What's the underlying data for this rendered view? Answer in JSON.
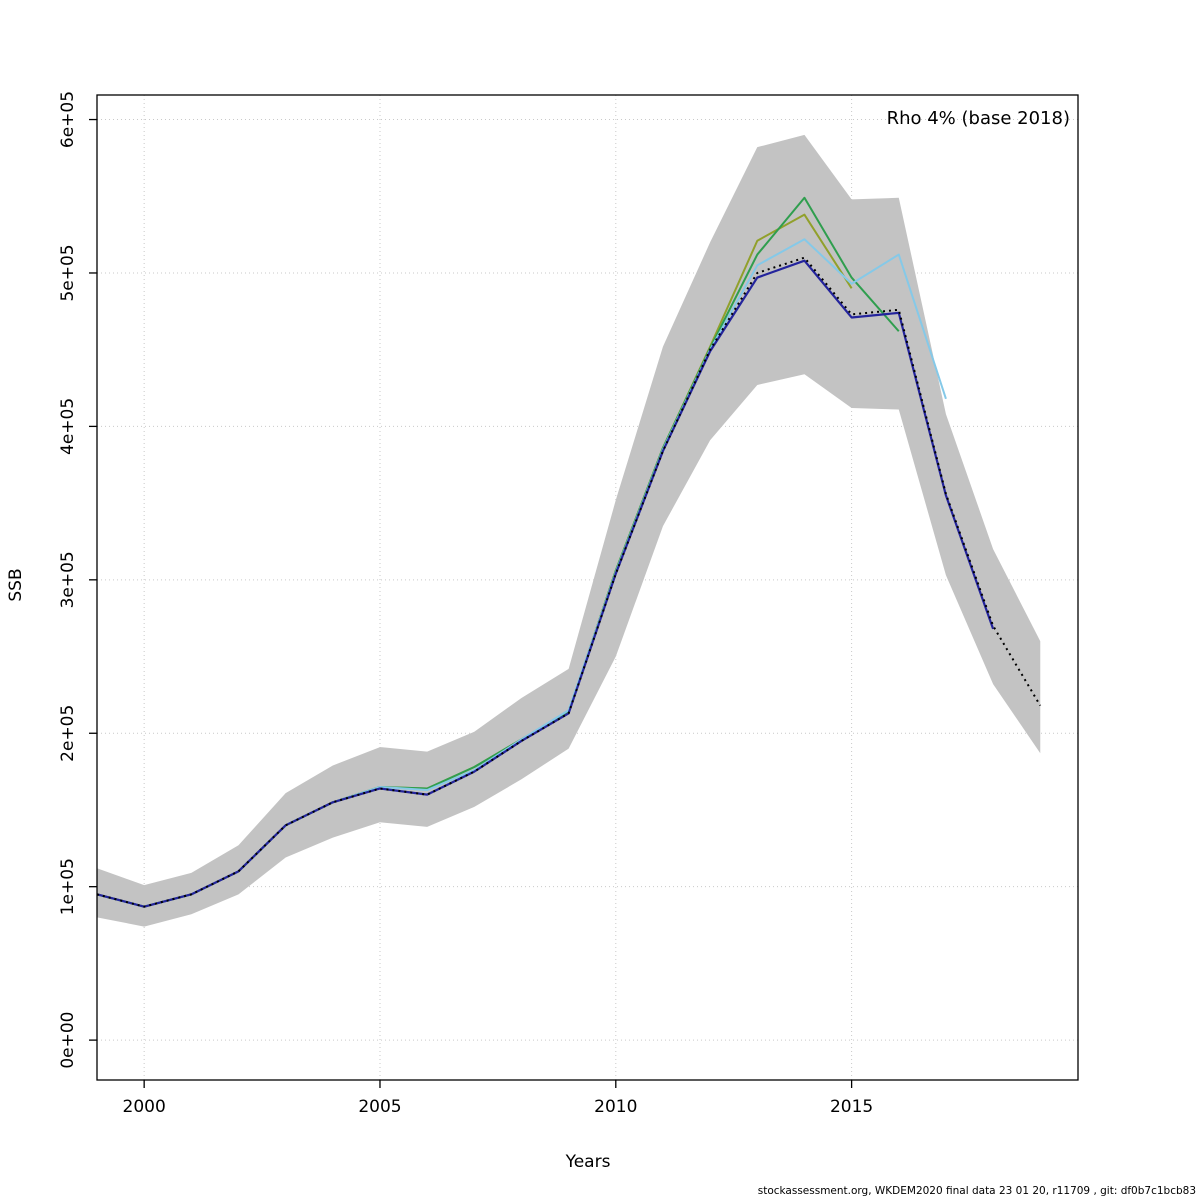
{
  "footer": {
    "text": "stockassessment.org, WKDEM2020 final data 23 01 20, r11709 , git: df0b7c1bcb83"
  },
  "chart_data": {
    "type": "line",
    "title": "Rho 4% (base 2018)",
    "xlabel": "Years",
    "ylabel": "SSB",
    "xlim": [
      1999,
      2019.8
    ],
    "ylim": [
      -26000,
      616000
    ],
    "x_ticks": [
      2000,
      2005,
      2010,
      2015
    ],
    "x_tick_labels": [
      "2000",
      "2005",
      "2010",
      "2015"
    ],
    "y_ticks": [
      0,
      100000,
      200000,
      300000,
      400000,
      500000,
      600000
    ],
    "y_tick_labels": [
      "0e+00",
      "1e+05",
      "2e+05",
      "3e+05",
      "4e+05",
      "5e+05",
      "6e+05"
    ],
    "grid": "on",
    "grid_color": "#c9c9c9",
    "legend": "none",
    "band": {
      "name": "confidence-band",
      "color": "#c3c3c3",
      "x": [
        1999,
        2000,
        2001,
        2002,
        2003,
        2004,
        2005,
        2006,
        2007,
        2008,
        2009,
        2010,
        2011,
        2012,
        2013,
        2014,
        2015,
        2016,
        2017,
        2018,
        2019
      ],
      "lower": [
        80000,
        74000,
        82000,
        95000,
        119000,
        132000,
        142000,
        139000,
        152000,
        170000,
        190000,
        250000,
        335000,
        391000,
        427000,
        434000,
        412000,
        411000,
        303000,
        232000,
        187000
      ],
      "upper": [
        112000,
        101000,
        109000,
        127000,
        161000,
        179000,
        191000,
        188000,
        201000,
        223000,
        242000,
        352000,
        452000,
        520000,
        582000,
        590000,
        548000,
        549000,
        408000,
        320000,
        260000
      ]
    },
    "series": [
      {
        "name": "retro-2015",
        "color": "#91a02b",
        "width": 2,
        "x": [
          1999,
          2000,
          2001,
          2002,
          2003,
          2004,
          2005,
          2006,
          2007,
          2008,
          2009,
          2010,
          2011,
          2012,
          2013,
          2014,
          2015
        ],
        "y": [
          95000,
          87000,
          95000,
          110000,
          140000,
          155000,
          165000,
          164000,
          178000,
          196000,
          214000,
          306000,
          386000,
          452000,
          521000,
          538000,
          490000
        ]
      },
      {
        "name": "retro-2016",
        "color": "#2f9e4e",
        "width": 2,
        "x": [
          1999,
          2000,
          2001,
          2002,
          2003,
          2004,
          2005,
          2006,
          2007,
          2008,
          2009,
          2010,
          2011,
          2012,
          2013,
          2014,
          2015,
          2016
        ],
        "y": [
          95000,
          87000,
          95000,
          110000,
          140000,
          155000,
          165000,
          164000,
          178000,
          196000,
          214000,
          306000,
          386000,
          451000,
          512000,
          549000,
          497000,
          462000
        ]
      },
      {
        "name": "retro-2017",
        "color": "#85c9e8",
        "width": 2,
        "x": [
          1999,
          2000,
          2001,
          2002,
          2003,
          2004,
          2005,
          2006,
          2007,
          2008,
          2009,
          2010,
          2011,
          2012,
          2013,
          2014,
          2015,
          2016,
          2017
        ],
        "y": [
          95000,
          87000,
          95000,
          110000,
          140000,
          155000,
          165000,
          163000,
          176000,
          196000,
          215000,
          305000,
          385000,
          450000,
          505000,
          522000,
          493000,
          512000,
          418000
        ]
      },
      {
        "name": "retro-2018",
        "color": "#24249c",
        "width": 2.2,
        "x": [
          1999,
          2000,
          2001,
          2002,
          2003,
          2004,
          2005,
          2006,
          2007,
          2008,
          2009,
          2010,
          2011,
          2012,
          2013,
          2014,
          2015,
          2016,
          2017,
          2018
        ],
        "y": [
          95000,
          87000,
          95000,
          110000,
          140000,
          155000,
          164000,
          160000,
          175000,
          195000,
          213000,
          304000,
          384000,
          449000,
          497000,
          508000,
          471000,
          474000,
          355000,
          268000
        ]
      },
      {
        "name": "base-2018",
        "color": "#000000",
        "width": 2,
        "dash": "2,4",
        "x": [
          1999,
          2000,
          2001,
          2002,
          2003,
          2004,
          2005,
          2006,
          2007,
          2008,
          2009,
          2010,
          2011,
          2012,
          2013,
          2014,
          2015,
          2016,
          2017,
          2018,
          2019
        ],
        "y": [
          95000,
          87000,
          95000,
          110000,
          140000,
          155000,
          164000,
          160000,
          175000,
          195000,
          213000,
          304000,
          384000,
          450000,
          500000,
          510000,
          473000,
          476000,
          356000,
          270000,
          218000
        ]
      }
    ]
  }
}
